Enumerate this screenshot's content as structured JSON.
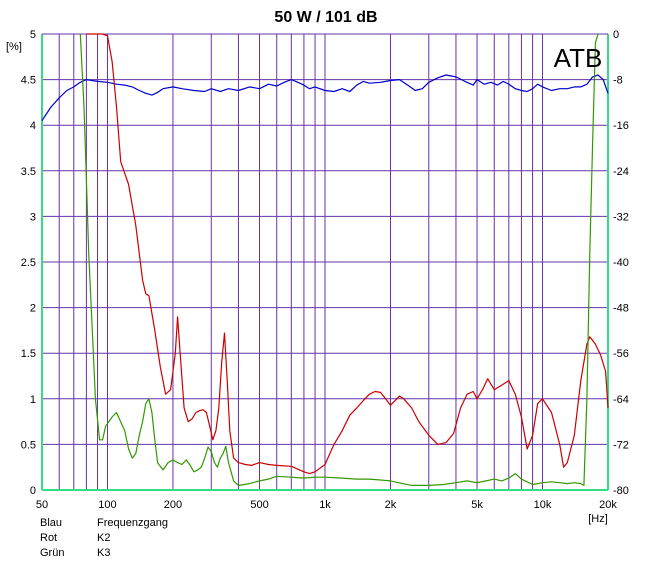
{
  "chart_data": {
    "type": "line",
    "title": "50 W / 101 dB",
    "brand": "ATB",
    "y_unit": "[%]",
    "x_unit": "[Hz]",
    "x_scale": "log",
    "xlim": [
      50,
      20000
    ],
    "ylim_left": [
      0,
      5
    ],
    "ylim_right": [
      -80,
      0
    ],
    "grid": true,
    "x_tick_labels": [
      {
        "value": 50,
        "label": "50"
      },
      {
        "value": 100,
        "label": "100"
      },
      {
        "value": 200,
        "label": "200"
      },
      {
        "value": 500,
        "label": "500"
      },
      {
        "value": 1000,
        "label": "1k"
      },
      {
        "value": 2000,
        "label": "2k"
      },
      {
        "value": 5000,
        "label": "5k"
      },
      {
        "value": 10000,
        "label": "10k"
      },
      {
        "value": 20000,
        "label": "20k"
      }
    ],
    "y_left_ticks": [
      "0",
      "0.5",
      "1",
      "1.5",
      "2",
      "2.5",
      "3",
      "3.5",
      "4",
      "4.5",
      "5"
    ],
    "y_right_ticks": [
      "-80",
      "-72",
      "-64",
      "-56",
      "-48",
      "-40",
      "-32",
      "-24",
      "-16",
      "-8",
      "0"
    ],
    "legend": [
      {
        "color_name": "Blau",
        "label": "Frequenzgang"
      },
      {
        "color_name": "Rot",
        "label": "K2"
      },
      {
        "color_name": "Grün",
        "label": "K3"
      }
    ],
    "series": [
      {
        "color": "#0000cc",
        "axis": "left",
        "points": [
          [
            50,
            4.05
          ],
          [
            55,
            4.2
          ],
          [
            60,
            4.3
          ],
          [
            65,
            4.38
          ],
          [
            70,
            4.42
          ],
          [
            75,
            4.47
          ],
          [
            80,
            4.5
          ],
          [
            90,
            4.48
          ],
          [
            100,
            4.47
          ],
          [
            110,
            4.45
          ],
          [
            120,
            4.44
          ],
          [
            130,
            4.42
          ],
          [
            140,
            4.38
          ],
          [
            150,
            4.35
          ],
          [
            160,
            4.33
          ],
          [
            170,
            4.36
          ],
          [
            180,
            4.4
          ],
          [
            200,
            4.42
          ],
          [
            220,
            4.4
          ],
          [
            250,
            4.38
          ],
          [
            280,
            4.37
          ],
          [
            300,
            4.4
          ],
          [
            330,
            4.37
          ],
          [
            360,
            4.4
          ],
          [
            400,
            4.38
          ],
          [
            450,
            4.42
          ],
          [
            500,
            4.4
          ],
          [
            550,
            4.45
          ],
          [
            600,
            4.43
          ],
          [
            650,
            4.47
          ],
          [
            700,
            4.5
          ],
          [
            750,
            4.47
          ],
          [
            800,
            4.44
          ],
          [
            850,
            4.4
          ],
          [
            900,
            4.42
          ],
          [
            1000,
            4.38
          ],
          [
            1100,
            4.37
          ],
          [
            1200,
            4.4
          ],
          [
            1300,
            4.37
          ],
          [
            1400,
            4.44
          ],
          [
            1500,
            4.48
          ],
          [
            1600,
            4.46
          ],
          [
            1800,
            4.47
          ],
          [
            2000,
            4.49
          ],
          [
            2200,
            4.5
          ],
          [
            2400,
            4.44
          ],
          [
            2600,
            4.38
          ],
          [
            2800,
            4.4
          ],
          [
            3000,
            4.47
          ],
          [
            3300,
            4.52
          ],
          [
            3600,
            4.55
          ],
          [
            4000,
            4.53
          ],
          [
            4400,
            4.48
          ],
          [
            4800,
            4.44
          ],
          [
            5000,
            4.5
          ],
          [
            5400,
            4.45
          ],
          [
            5800,
            4.47
          ],
          [
            6200,
            4.44
          ],
          [
            6600,
            4.48
          ],
          [
            7000,
            4.45
          ],
          [
            7500,
            4.4
          ],
          [
            8000,
            4.38
          ],
          [
            8500,
            4.37
          ],
          [
            9000,
            4.4
          ],
          [
            9500,
            4.45
          ],
          [
            10000,
            4.42
          ],
          [
            11000,
            4.38
          ],
          [
            12000,
            4.4
          ],
          [
            13000,
            4.4
          ],
          [
            14000,
            4.42
          ],
          [
            15000,
            4.42
          ],
          [
            16000,
            4.45
          ],
          [
            17000,
            4.53
          ],
          [
            18000,
            4.55
          ],
          [
            19000,
            4.5
          ],
          [
            20000,
            4.35
          ]
        ]
      },
      {
        "color": "#cc0000",
        "axis": "left",
        "points": [
          [
            80,
            5
          ],
          [
            95,
            5
          ],
          [
            100,
            4.98
          ],
          [
            105,
            4.7
          ],
          [
            110,
            4.2
          ],
          [
            115,
            3.6
          ],
          [
            125,
            3.35
          ],
          [
            135,
            2.9
          ],
          [
            145,
            2.3
          ],
          [
            150,
            2.15
          ],
          [
            155,
            2.13
          ],
          [
            165,
            1.75
          ],
          [
            175,
            1.35
          ],
          [
            185,
            1.05
          ],
          [
            195,
            1.1
          ],
          [
            205,
            1.5
          ],
          [
            210,
            1.9
          ],
          [
            215,
            1.55
          ],
          [
            225,
            0.9
          ],
          [
            235,
            0.75
          ],
          [
            245,
            0.78
          ],
          [
            255,
            0.85
          ],
          [
            265,
            0.87
          ],
          [
            275,
            0.88
          ],
          [
            285,
            0.85
          ],
          [
            295,
            0.7
          ],
          [
            305,
            0.55
          ],
          [
            315,
            0.65
          ],
          [
            325,
            0.9
          ],
          [
            335,
            1.4
          ],
          [
            345,
            1.72
          ],
          [
            355,
            1.2
          ],
          [
            365,
            0.65
          ],
          [
            380,
            0.35
          ],
          [
            400,
            0.3
          ],
          [
            430,
            0.28
          ],
          [
            460,
            0.27
          ],
          [
            500,
            0.3
          ],
          [
            550,
            0.28
          ],
          [
            600,
            0.27
          ],
          [
            700,
            0.26
          ],
          [
            800,
            0.2
          ],
          [
            850,
            0.18
          ],
          [
            900,
            0.2
          ],
          [
            1000,
            0.28
          ],
          [
            1100,
            0.5
          ],
          [
            1200,
            0.65
          ],
          [
            1300,
            0.82
          ],
          [
            1400,
            0.9
          ],
          [
            1500,
            0.98
          ],
          [
            1600,
            1.05
          ],
          [
            1700,
            1.08
          ],
          [
            1800,
            1.07
          ],
          [
            1900,
            1.0
          ],
          [
            2000,
            0.93
          ],
          [
            2100,
            0.98
          ],
          [
            2200,
            1.03
          ],
          [
            2300,
            1.0
          ],
          [
            2500,
            0.9
          ],
          [
            2700,
            0.75
          ],
          [
            3000,
            0.6
          ],
          [
            3300,
            0.5
          ],
          [
            3600,
            0.52
          ],
          [
            3900,
            0.62
          ],
          [
            4200,
            0.9
          ],
          [
            4500,
            1.05
          ],
          [
            4800,
            1.08
          ],
          [
            5000,
            1.0
          ],
          [
            5300,
            1.1
          ],
          [
            5600,
            1.22
          ],
          [
            6000,
            1.1
          ],
          [
            6500,
            1.15
          ],
          [
            7000,
            1.2
          ],
          [
            7500,
            1.05
          ],
          [
            8000,
            0.8
          ],
          [
            8500,
            0.45
          ],
          [
            9000,
            0.6
          ],
          [
            9500,
            0.95
          ],
          [
            10000,
            1.0
          ],
          [
            11000,
            0.85
          ],
          [
            12000,
            0.5
          ],
          [
            12500,
            0.25
          ],
          [
            13000,
            0.3
          ],
          [
            14000,
            0.6
          ],
          [
            15000,
            1.2
          ],
          [
            16000,
            1.6
          ],
          [
            16500,
            1.68
          ],
          [
            17500,
            1.6
          ],
          [
            18500,
            1.48
          ],
          [
            19500,
            1.3
          ],
          [
            20000,
            0.9
          ]
        ]
      },
      {
        "color": "#339900",
        "axis": "left",
        "points": [
          [
            75,
            5
          ],
          [
            78,
            4.2
          ],
          [
            80,
            3.4
          ],
          [
            82,
            2.6
          ],
          [
            85,
            1.8
          ],
          [
            88,
            1.0
          ],
          [
            92,
            0.55
          ],
          [
            95,
            0.55
          ],
          [
            98,
            0.7
          ],
          [
            105,
            0.8
          ],
          [
            110,
            0.85
          ],
          [
            120,
            0.65
          ],
          [
            125,
            0.45
          ],
          [
            130,
            0.35
          ],
          [
            135,
            0.4
          ],
          [
            140,
            0.6
          ],
          [
            145,
            0.75
          ],
          [
            150,
            0.95
          ],
          [
            155,
            1.0
          ],
          [
            160,
            0.85
          ],
          [
            165,
            0.55
          ],
          [
            170,
            0.3
          ],
          [
            180,
            0.22
          ],
          [
            190,
            0.3
          ],
          [
            200,
            0.33
          ],
          [
            210,
            0.3
          ],
          [
            220,
            0.28
          ],
          [
            230,
            0.33
          ],
          [
            240,
            0.27
          ],
          [
            250,
            0.2
          ],
          [
            260,
            0.22
          ],
          [
            270,
            0.25
          ],
          [
            280,
            0.35
          ],
          [
            290,
            0.47
          ],
          [
            300,
            0.42
          ],
          [
            310,
            0.3
          ],
          [
            320,
            0.25
          ],
          [
            330,
            0.35
          ],
          [
            340,
            0.4
          ],
          [
            350,
            0.48
          ],
          [
            360,
            0.3
          ],
          [
            370,
            0.2
          ],
          [
            380,
            0.1
          ],
          [
            400,
            0.05
          ],
          [
            450,
            0.07
          ],
          [
            500,
            0.1
          ],
          [
            550,
            0.12
          ],
          [
            600,
            0.15
          ],
          [
            700,
            0.14
          ],
          [
            800,
            0.13
          ],
          [
            900,
            0.14
          ],
          [
            1000,
            0.14
          ],
          [
            1200,
            0.13
          ],
          [
            1400,
            0.12
          ],
          [
            1600,
            0.12
          ],
          [
            1800,
            0.11
          ],
          [
            2000,
            0.1
          ],
          [
            2500,
            0.05
          ],
          [
            3000,
            0.05
          ],
          [
            3500,
            0.06
          ],
          [
            4000,
            0.08
          ],
          [
            4500,
            0.1
          ],
          [
            5000,
            0.08
          ],
          [
            5500,
            0.1
          ],
          [
            6000,
            0.12
          ],
          [
            6500,
            0.1
          ],
          [
            7000,
            0.13
          ],
          [
            7500,
            0.18
          ],
          [
            8000,
            0.12
          ],
          [
            9000,
            0.06
          ],
          [
            10000,
            0.08
          ],
          [
            11000,
            0.09
          ],
          [
            12000,
            0.08
          ],
          [
            13000,
            0.07
          ],
          [
            14000,
            0.08
          ],
          [
            15000,
            0.07
          ],
          [
            15500,
            0.05
          ],
          [
            16000,
            1.0
          ],
          [
            16500,
            2.6
          ],
          [
            17000,
            3.8
          ],
          [
            17500,
            4.9
          ],
          [
            18000,
            5
          ]
        ]
      }
    ]
  }
}
